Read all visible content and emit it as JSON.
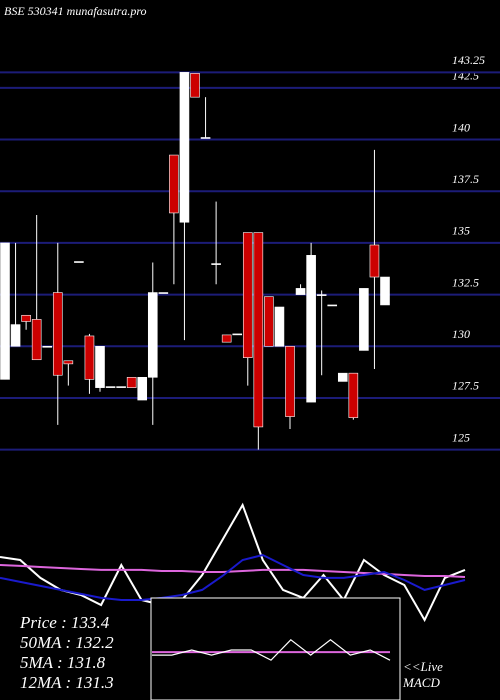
{
  "chart_data": [
    {
      "type": "candlestick",
      "title": "BSE 530341 munafasutra.pro",
      "open": [
        128.4,
        130,
        131.5,
        131.3,
        130,
        132.6,
        129.3,
        134.1,
        130.5,
        128,
        128.05,
        128.05,
        128.5,
        127.4,
        128.5,
        132.6,
        139.25,
        136,
        143.2,
        140.1,
        134,
        130.55,
        130.6,
        135.5,
        135.5,
        132.4,
        130,
        130,
        132.5,
        127.3,
        132.5,
        132,
        128.3,
        128.7,
        129.8,
        134.9,
        132
      ],
      "high": [
        135,
        135,
        131.5,
        136.35,
        130,
        135,
        129.3,
        134.1,
        130.6,
        130,
        128.05,
        128.05,
        128.5,
        128.5,
        134.05,
        132.6,
        139.25,
        143.25,
        143.2,
        142.05,
        137,
        130.55,
        130.6,
        135.5,
        135.5,
        132.4,
        131.9,
        130,
        133,
        135,
        132.7,
        132,
        128.7,
        128.7,
        132.8,
        139.5,
        133.35
      ],
      "low": [
        128.4,
        130,
        130.8,
        129.35,
        130,
        126.2,
        128.1,
        134.1,
        127.7,
        127.8,
        128.05,
        128.05,
        128,
        127.4,
        126.2,
        132.6,
        133,
        130.3,
        142.05,
        140.1,
        133,
        130.2,
        130.6,
        128.1,
        125,
        130,
        130,
        126,
        132.5,
        127.3,
        128.6,
        132,
        128.3,
        126.45,
        129.8,
        128.9,
        132
      ],
      "close": [
        135,
        131.05,
        131.2,
        129.35,
        130,
        128.6,
        129.15,
        134.1,
        128.4,
        130,
        128.05,
        128.05,
        128,
        128.5,
        132.6,
        132.6,
        136.45,
        143.25,
        142.05,
        140.1,
        134,
        130.2,
        130.6,
        129.45,
        126.1,
        130,
        131.9,
        126.6,
        132.8,
        134.4,
        132.5,
        132,
        128.7,
        126.55,
        132.8,
        133.35,
        133.35
      ],
      "up_color": "#ffffff",
      "down_color": "#cc0000",
      "grid_color": "#1c1c78",
      "ylim": [
        124.5,
        146.75
      ],
      "yticks": [
        125,
        127.5,
        130,
        132.5,
        135,
        137.5,
        140,
        142.5,
        143.25
      ],
      "grid": true,
      "legend": [
        "Price  : 133.4",
        "50MA : 132.2",
        "5MA : 131.8",
        "12MA : 131.3"
      ]
    },
    {
      "type": "line",
      "ylim": [
        0,
        100
      ],
      "series": [
        {
          "color": "#ffffff",
          "values": [
            51.9,
            50,
            38.8,
            31.3,
            28.1,
            21.9,
            46.9,
            25,
            21.9,
            25,
            40.6,
            62.5,
            84.4,
            50,
            31.3,
            26.3,
            40.6,
            25,
            50,
            40.6,
            34.4,
            12.5,
            38.8,
            43.8
          ]
        },
        {
          "color": "#dd66dd",
          "values": [
            46.9,
            46.3,
            45.6,
            45,
            44.4,
            43.8,
            43.8,
            43.8,
            43.1,
            43.1,
            42.5,
            42.5,
            43.1,
            43.8,
            43.8,
            43.8,
            43.1,
            42.5,
            41.9,
            41.3,
            40.6,
            40,
            40,
            39.4
          ]
        },
        {
          "color": "#1a1acc",
          "values": [
            38.8,
            36.3,
            33.8,
            31.3,
            28.8,
            26.3,
            25,
            25,
            26.3,
            28.1,
            31.3,
            40,
            50,
            53.1,
            46.9,
            40.6,
            38.8,
            38.8,
            40.6,
            42.5,
            37.5,
            31.3,
            34.4,
            37.5
          ]
        }
      ]
    },
    {
      "type": "macd",
      "title": "<<Live",
      "subtitle": "MACD",
      "ylim": [
        0,
        100
      ],
      "series": [
        {
          "color": "#dd66dd",
          "values": [
            47,
            47,
            47,
            47,
            47,
            47,
            47,
            47,
            47,
            47,
            47,
            47,
            47
          ]
        },
        {
          "color": "#ffffff",
          "values": [
            44,
            44,
            49,
            44,
            49,
            49,
            39,
            59,
            44,
            59,
            44,
            49,
            39
          ]
        }
      ]
    }
  ]
}
